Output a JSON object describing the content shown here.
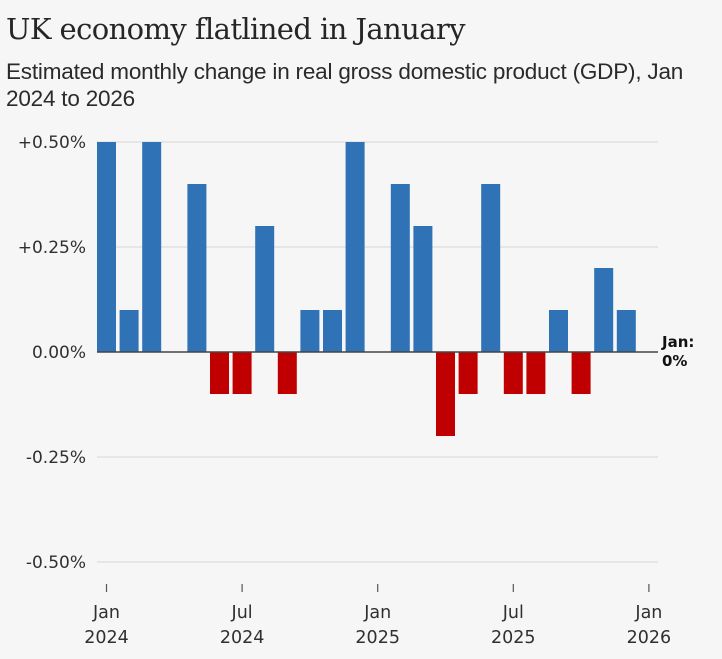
{
  "header": {
    "title": "UK economy flatlined in January",
    "subtitle": "Estimated monthly change in real gross domestic product (GDP), Jan 2024 to 2026"
  },
  "colors": {
    "positive": "#2f72b5",
    "negative": "#c00000",
    "background": "#f6f6f6",
    "gridline": "#dddddd",
    "zeroline": "#444444"
  },
  "chart_data": {
    "type": "bar",
    "title": "UK economy flatlined in January",
    "subtitle": "Estimated monthly change in real gross domestic product (GDP), Jan 2024 to 2026",
    "xlabel": "",
    "ylabel": "",
    "ylim": [
      -0.5,
      0.5
    ],
    "grid": true,
    "categories": [
      "Jan 2024",
      "Feb 2024",
      "Mar 2024",
      "Apr 2024",
      "May 2024",
      "Jun 2024",
      "Jul 2024",
      "Aug 2024",
      "Sep 2024",
      "Oct 2024",
      "Nov 2024",
      "Dec 2024",
      "Jan 2025",
      "Feb 2025",
      "Mar 2025",
      "Apr 2025",
      "May 2025",
      "Jun 2025",
      "Jul 2025",
      "Aug 2025",
      "Sep 2025",
      "Oct 2025",
      "Nov 2025",
      "Dec 2025",
      "Jan 2026"
    ],
    "values": [
      0.5,
      0.1,
      0.5,
      0.0,
      0.4,
      -0.1,
      -0.1,
      0.3,
      -0.1,
      0.1,
      0.1,
      0.5,
      0.0,
      0.4,
      0.3,
      -0.2,
      -0.1,
      0.4,
      -0.1,
      -0.1,
      0.1,
      -0.1,
      0.2,
      0.1,
      0.0
    ],
    "unit": "%",
    "y_ticks": [
      {
        "value": 0.5,
        "label": "+0.50%"
      },
      {
        "value": 0.25,
        "label": "+0.25%"
      },
      {
        "value": 0.0,
        "label": "0.00%"
      },
      {
        "value": -0.25,
        "label": "-0.25%"
      },
      {
        "value": -0.5,
        "label": "-0.50%"
      }
    ],
    "x_ticks": [
      {
        "index": 0,
        "month": "Jan",
        "year": "2024"
      },
      {
        "index": 6,
        "month": "Jul",
        "year": "2024"
      },
      {
        "index": 12,
        "month": "Jan",
        "year": "2025"
      },
      {
        "index": 18,
        "month": "Jul",
        "year": "2025"
      },
      {
        "index": 24,
        "month": "Jan",
        "year": "2026"
      }
    ],
    "annotations": [
      {
        "index": 24,
        "lines": [
          "Jan:",
          "0%"
        ]
      }
    ]
  }
}
